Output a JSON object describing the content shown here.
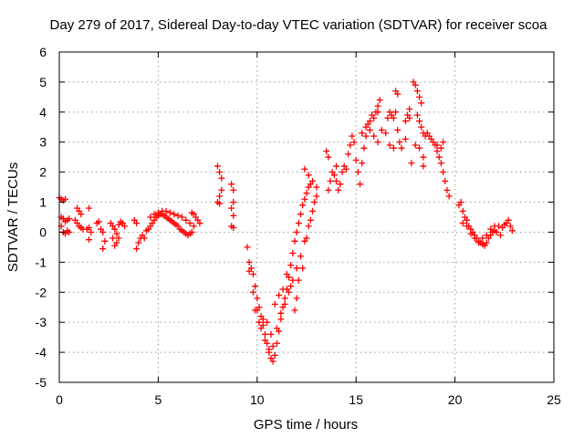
{
  "chart_data": {
    "type": "scatter",
    "title": "Day 279 of 2017, Sidereal Day-to-day VTEC variation (SDTVAR) for receiver scoa",
    "xlabel": "GPS time / hours",
    "ylabel": "SDTVAR / TECUs",
    "xlim": [
      0,
      25
    ],
    "ylim": [
      -5,
      6
    ],
    "xticks": [
      "0",
      "5",
      "10",
      "15",
      "20",
      "25"
    ],
    "yticks": [
      "-5",
      "-4",
      "-3",
      "-2",
      "-1",
      "0",
      "1",
      "2",
      "3",
      "4",
      "5",
      "6"
    ],
    "grid": true,
    "marker": "+",
    "color": "#ff0000",
    "series": [
      {
        "name": "SDTVAR",
        "points": [
          [
            0.0,
            1.15
          ],
          [
            0.1,
            1.1
          ],
          [
            0.2,
            1.05
          ],
          [
            0.3,
            1.1
          ],
          [
            0.1,
            0.5
          ],
          [
            0.2,
            0.45
          ],
          [
            0.3,
            0.35
          ],
          [
            0.4,
            0.4
          ],
          [
            0.5,
            0.45
          ],
          [
            0.1,
            0.2
          ],
          [
            0.2,
            0.0
          ],
          [
            0.3,
            -0.05
          ],
          [
            0.4,
            0.05
          ],
          [
            0.5,
            0.0
          ],
          [
            0.9,
            0.8
          ],
          [
            1.0,
            0.7
          ],
          [
            1.1,
            0.6
          ],
          [
            0.8,
            0.4
          ],
          [
            0.9,
            0.3
          ],
          [
            1.0,
            0.2
          ],
          [
            1.1,
            0.15
          ],
          [
            1.2,
            0.1
          ],
          [
            1.4,
            0.1
          ],
          [
            1.5,
            0.15
          ],
          [
            1.5,
            0.8
          ],
          [
            1.6,
            0.0
          ],
          [
            1.5,
            -0.25
          ],
          [
            1.9,
            0.3
          ],
          [
            2.0,
            0.35
          ],
          [
            2.1,
            0.1
          ],
          [
            2.2,
            0.0
          ],
          [
            2.2,
            -0.55
          ],
          [
            2.3,
            -0.3
          ],
          [
            2.6,
            0.3
          ],
          [
            2.7,
            0.2
          ],
          [
            2.8,
            0.1
          ],
          [
            2.9,
            -0.05
          ],
          [
            3.0,
            0.25
          ],
          [
            3.1,
            0.35
          ],
          [
            3.2,
            0.3
          ],
          [
            3.3,
            0.2
          ],
          [
            2.7,
            -0.2
          ],
          [
            2.8,
            -0.45
          ],
          [
            2.9,
            -0.35
          ],
          [
            3.0,
            -0.2
          ],
          [
            3.8,
            0.4
          ],
          [
            3.9,
            0.3
          ],
          [
            3.9,
            -0.55
          ],
          [
            4.0,
            -0.35
          ],
          [
            4.1,
            -0.2
          ],
          [
            4.2,
            -0.1
          ],
          [
            4.3,
            -0.2
          ],
          [
            4.4,
            0.05
          ],
          [
            4.5,
            0.1
          ],
          [
            4.6,
            0.2
          ],
          [
            4.7,
            0.3
          ],
          [
            4.8,
            0.4
          ],
          [
            4.9,
            0.5
          ],
          [
            5.0,
            0.55
          ],
          [
            5.1,
            0.6
          ],
          [
            5.2,
            0.6
          ],
          [
            5.3,
            0.55
          ],
          [
            5.4,
            0.5
          ],
          [
            5.5,
            0.45
          ],
          [
            5.6,
            0.4
          ],
          [
            5.7,
            0.35
          ],
          [
            5.8,
            0.3
          ],
          [
            5.9,
            0.25
          ],
          [
            6.0,
            0.2
          ],
          [
            6.1,
            0.1
          ],
          [
            6.2,
            0.05
          ],
          [
            6.3,
            0.0
          ],
          [
            6.4,
            -0.05
          ],
          [
            6.5,
            -0.1
          ],
          [
            6.6,
            -0.05
          ],
          [
            6.7,
            0.0
          ],
          [
            4.6,
            0.5
          ],
          [
            4.8,
            0.6
          ],
          [
            5.0,
            0.65
          ],
          [
            5.2,
            0.7
          ],
          [
            5.4,
            0.7
          ],
          [
            5.6,
            0.65
          ],
          [
            5.8,
            0.6
          ],
          [
            6.0,
            0.55
          ],
          [
            6.2,
            0.5
          ],
          [
            6.4,
            0.4
          ],
          [
            6.6,
            0.3
          ],
          [
            6.8,
            0.2
          ],
          [
            6.9,
            0.5
          ],
          [
            7.0,
            0.4
          ],
          [
            7.1,
            0.3
          ],
          [
            6.7,
            0.65
          ],
          [
            6.8,
            0.6
          ],
          [
            8.0,
            2.2
          ],
          [
            8.1,
            2.0
          ],
          [
            8.2,
            1.8
          ],
          [
            8.2,
            1.4
          ],
          [
            8.1,
            1.2
          ],
          [
            8.0,
            1.0
          ],
          [
            8.1,
            0.95
          ],
          [
            8.7,
            1.6
          ],
          [
            8.8,
            1.4
          ],
          [
            8.8,
            1.0
          ],
          [
            8.7,
            0.8
          ],
          [
            8.8,
            0.55
          ],
          [
            8.7,
            0.2
          ],
          [
            8.8,
            0.15
          ],
          [
            9.5,
            -0.5
          ],
          [
            9.6,
            -1.0
          ],
          [
            9.7,
            -1.2
          ],
          [
            9.8,
            -1.4
          ],
          [
            9.9,
            -1.8
          ],
          [
            10.0,
            -2.2
          ],
          [
            10.1,
            -2.5
          ],
          [
            10.2,
            -2.8
          ],
          [
            10.3,
            -3.1
          ],
          [
            10.4,
            -3.4
          ],
          [
            10.5,
            -3.7
          ],
          [
            10.6,
            -4.0
          ],
          [
            10.7,
            -4.2
          ],
          [
            10.8,
            -4.3
          ],
          [
            10.9,
            -4.1
          ],
          [
            11.0,
            -3.7
          ],
          [
            11.1,
            -3.3
          ],
          [
            11.2,
            -2.9
          ],
          [
            11.3,
            -2.5
          ],
          [
            11.4,
            -2.2
          ],
          [
            11.5,
            -1.9
          ],
          [
            11.6,
            -1.5
          ],
          [
            11.7,
            -1.1
          ],
          [
            11.8,
            -0.7
          ],
          [
            11.9,
            -0.3
          ],
          [
            12.0,
            0.0
          ],
          [
            12.1,
            0.3
          ],
          [
            12.2,
            0.6
          ],
          [
            12.3,
            0.9
          ],
          [
            12.4,
            1.1
          ],
          [
            12.5,
            1.3
          ],
          [
            12.6,
            1.5
          ],
          [
            12.7,
            1.6
          ],
          [
            9.6,
            -1.3
          ],
          [
            9.8,
            -2.0
          ],
          [
            10.0,
            -2.6
          ],
          [
            10.2,
            -3.2
          ],
          [
            10.4,
            -3.6
          ],
          [
            10.6,
            -3.9
          ],
          [
            10.8,
            -3.8
          ],
          [
            11.0,
            -3.2
          ],
          [
            11.2,
            -2.7
          ],
          [
            11.4,
            -2.4
          ],
          [
            11.6,
            -2.0
          ],
          [
            11.8,
            -1.6
          ],
          [
            12.0,
            -1.2
          ],
          [
            12.2,
            -0.8
          ],
          [
            12.4,
            -0.3
          ],
          [
            12.6,
            0.2
          ],
          [
            12.8,
            0.7
          ],
          [
            12.9,
            1.0
          ],
          [
            13.0,
            1.2
          ],
          [
            9.9,
            -2.6
          ],
          [
            10.1,
            -3.0
          ],
          [
            10.3,
            -2.9
          ],
          [
            10.5,
            -3.0
          ],
          [
            10.7,
            -3.4
          ],
          [
            10.9,
            -2.4
          ],
          [
            11.1,
            -2.1
          ],
          [
            11.3,
            -1.9
          ],
          [
            11.5,
            -1.4
          ],
          [
            11.7,
            -1.8
          ],
          [
            11.9,
            -2.6
          ],
          [
            12.0,
            -2.2
          ],
          [
            12.1,
            -1.6
          ],
          [
            12.3,
            -1.2
          ],
          [
            12.5,
            -0.2
          ],
          [
            12.7,
            0.4
          ],
          [
            12.4,
            2.1
          ],
          [
            12.6,
            1.9
          ],
          [
            12.8,
            1.7
          ],
          [
            13.0,
            1.5
          ],
          [
            13.6,
            1.4
          ],
          [
            13.7,
            1.7
          ],
          [
            13.8,
            2.0
          ],
          [
            13.9,
            1.9
          ],
          [
            14.0,
            1.7
          ],
          [
            14.1,
            1.4
          ],
          [
            14.2,
            1.6
          ],
          [
            14.3,
            2.0
          ],
          [
            14.4,
            2.2
          ],
          [
            14.5,
            2.1
          ],
          [
            13.5,
            2.7
          ],
          [
            13.6,
            2.5
          ],
          [
            14.0,
            2.2
          ],
          [
            14.6,
            2.6
          ],
          [
            14.7,
            2.9
          ],
          [
            14.8,
            3.2
          ],
          [
            14.9,
            3.0
          ],
          [
            15.0,
            2.4
          ],
          [
            15.1,
            2.0
          ],
          [
            15.2,
            1.6
          ],
          [
            15.3,
            2.3
          ],
          [
            15.4,
            2.8
          ],
          [
            15.5,
            3.2
          ],
          [
            15.6,
            3.6
          ],
          [
            15.7,
            3.7
          ],
          [
            15.8,
            3.9
          ],
          [
            15.9,
            3.8
          ],
          [
            16.0,
            4.0
          ],
          [
            16.1,
            4.2
          ],
          [
            15.3,
            3.3
          ],
          [
            15.5,
            3.5
          ],
          [
            15.7,
            3.4
          ],
          [
            15.9,
            3.2
          ],
          [
            16.1,
            3.0
          ],
          [
            16.3,
            3.4
          ],
          [
            16.2,
            4.4
          ],
          [
            16.1,
            4.0
          ],
          [
            16.5,
            3.3
          ],
          [
            16.6,
            3.8
          ],
          [
            16.7,
            4.0
          ],
          [
            16.8,
            3.9
          ],
          [
            16.9,
            3.8
          ],
          [
            17.0,
            4.0
          ],
          [
            17.1,
            3.4
          ],
          [
            17.2,
            3.0
          ],
          [
            17.3,
            2.8
          ],
          [
            16.7,
            2.9
          ],
          [
            16.9,
            2.8
          ],
          [
            17.0,
            4.7
          ],
          [
            17.1,
            4.6
          ],
          [
            17.5,
            3.7
          ],
          [
            17.6,
            3.9
          ],
          [
            17.7,
            3.8
          ],
          [
            17.8,
            2.3
          ],
          [
            17.7,
            4.1
          ],
          [
            17.5,
            3.1
          ],
          [
            17.9,
            5.0
          ],
          [
            18.0,
            4.9
          ],
          [
            18.1,
            4.7
          ],
          [
            18.2,
            4.5
          ],
          [
            18.3,
            4.3
          ],
          [
            18.1,
            3.9
          ],
          [
            18.2,
            3.7
          ],
          [
            18.3,
            3.5
          ],
          [
            18.4,
            3.3
          ],
          [
            18.5,
            3.2
          ],
          [
            18.0,
            2.9
          ],
          [
            18.2,
            2.8
          ],
          [
            18.4,
            2.5
          ],
          [
            18.4,
            2.2
          ],
          [
            18.6,
            3.3
          ],
          [
            18.7,
            3.2
          ],
          [
            18.8,
            3.1
          ],
          [
            18.9,
            3.0
          ],
          [
            19.0,
            2.9
          ],
          [
            19.1,
            2.7
          ],
          [
            19.2,
            2.5
          ],
          [
            19.3,
            2.3
          ],
          [
            19.4,
            2.0
          ],
          [
            19.5,
            1.7
          ],
          [
            19.6,
            1.4
          ],
          [
            19.7,
            1.2
          ],
          [
            19.4,
            3.0
          ],
          [
            19.3,
            2.8
          ],
          [
            19.1,
            2.9
          ],
          [
            20.2,
            0.9
          ],
          [
            20.3,
            1.0
          ],
          [
            20.4,
            0.7
          ],
          [
            20.5,
            0.5
          ],
          [
            20.6,
            0.4
          ],
          [
            20.7,
            0.2
          ],
          [
            20.8,
            0.1
          ],
          [
            20.9,
            0.0
          ],
          [
            21.0,
            -0.1
          ],
          [
            21.1,
            -0.2
          ],
          [
            21.2,
            -0.3
          ],
          [
            21.3,
            -0.35
          ],
          [
            21.4,
            -0.4
          ],
          [
            21.5,
            -0.45
          ],
          [
            21.6,
            -0.35
          ],
          [
            21.7,
            -0.2
          ],
          [
            21.8,
            -0.1
          ],
          [
            21.9,
            0.0
          ],
          [
            22.0,
            0.05
          ],
          [
            20.4,
            0.3
          ],
          [
            20.6,
            0.2
          ],
          [
            20.8,
            -0.05
          ],
          [
            21.0,
            -0.2
          ],
          [
            21.2,
            -0.35
          ],
          [
            21.4,
            -0.2
          ],
          [
            21.6,
            -0.1
          ],
          [
            21.8,
            0.1
          ],
          [
            22.0,
            0.2
          ],
          [
            22.2,
            0.2
          ],
          [
            22.4,
            0.15
          ],
          [
            22.5,
            0.25
          ],
          [
            22.6,
            0.3
          ],
          [
            22.7,
            0.4
          ],
          [
            22.8,
            0.2
          ],
          [
            22.9,
            0.05
          ],
          [
            22.3,
            -0.1
          ],
          [
            22.1,
            0.0
          ]
        ]
      }
    ]
  }
}
